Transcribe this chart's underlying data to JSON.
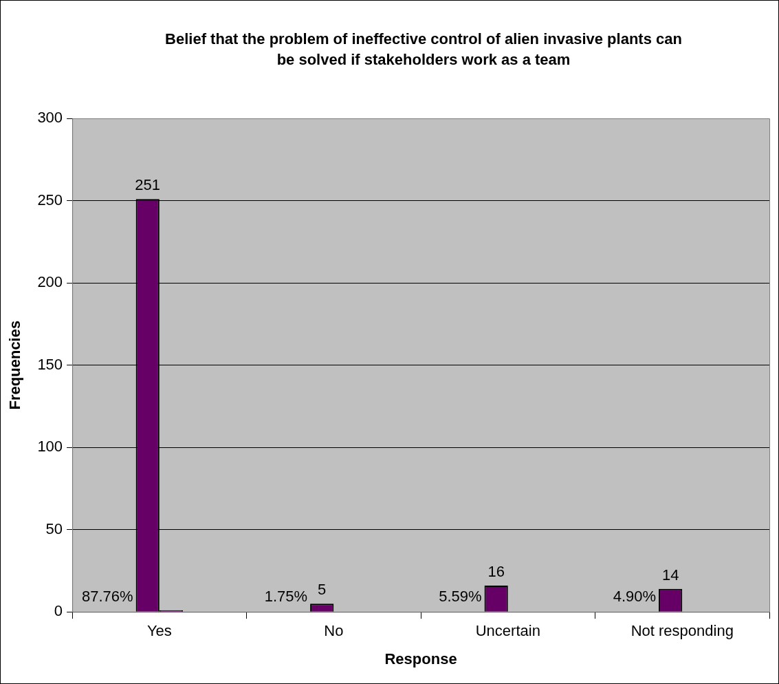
{
  "chart_data": {
    "type": "bar",
    "title": "Belief that the problem of ineffective control of alien invasive plants can be solved if stakeholders work as a team",
    "xlabel": "Response",
    "ylabel": "Frequencies",
    "categories": [
      "Yes",
      "No",
      "Uncertain",
      "Not responding"
    ],
    "series": [
      {
        "color": "#660066",
        "values": [
          251,
          5,
          16,
          14
        ],
        "value_labels": [
          "251",
          "5",
          "16",
          "14"
        ]
      },
      {
        "color": "#660066",
        "values": [
          1,
          null,
          null,
          null
        ]
      }
    ],
    "annotations": [
      {
        "text": "87.76%",
        "x": "Yes",
        "y": 0
      },
      {
        "text": "1.75%",
        "x": "No",
        "y": 0
      },
      {
        "text": "5.59%",
        "x": "Uncertain",
        "y": 0
      },
      {
        "text": "4.90%",
        "x": "Not responding",
        "y": 0
      }
    ],
    "ylim": [
      0,
      300
    ],
    "yticks": [
      0,
      50,
      100,
      150,
      200,
      250,
      300
    ],
    "grid": "y",
    "legend": false
  }
}
